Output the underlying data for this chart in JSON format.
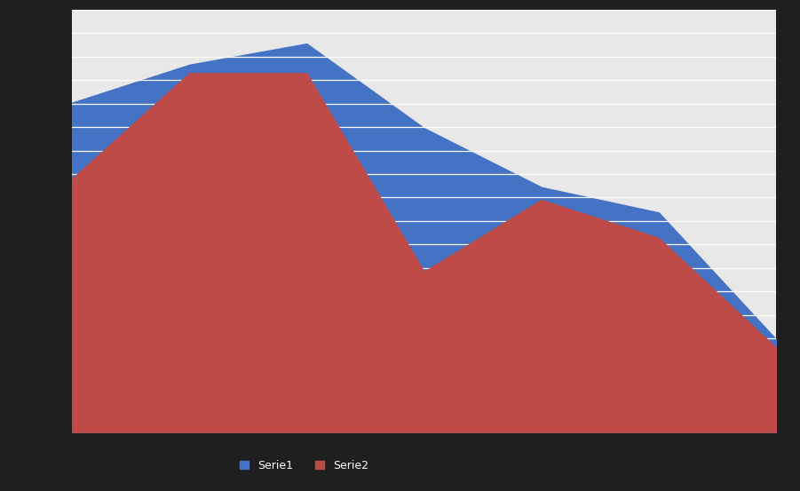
{
  "blue_y": [
    78,
    87,
    92,
    72,
    58,
    52,
    22
  ],
  "red_y": [
    60,
    85,
    85,
    38,
    55,
    46,
    20
  ],
  "x": [
    0,
    1,
    2,
    3,
    4,
    5,
    6
  ],
  "blue_color": "#4472C4",
  "red_color": "#BE4B48",
  "fig_bg_color": "#1F1F1F",
  "plot_bg_color": "#E8E8E8",
  "grid_color": "#FFFFFF",
  "legend_blue": "Serie1",
  "legend_red": "Serie2",
  "ylim": [
    0,
    100
  ],
  "xlim": [
    0,
    6
  ],
  "figsize": [
    9.01,
    5.53
  ],
  "dpi": 100,
  "n_gridlines": 18
}
